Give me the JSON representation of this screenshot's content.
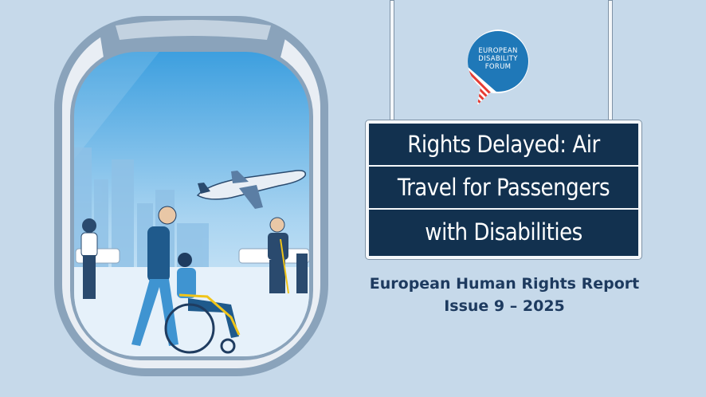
{
  "logo": {
    "line1": "EUROPEAN",
    "line2": "DISABILITY",
    "line3": "FORUM",
    "color": "#1f78b8",
    "stripe_color": "#e63b33"
  },
  "sign": {
    "lines": [
      "Rights Delayed: Air",
      "Travel for Passengers",
      "with Disabilities"
    ],
    "background": "#12314f"
  },
  "subtitle": {
    "line1": "European Human Rights Report",
    "line2": "Issue 9 – 2025"
  },
  "colors": {
    "background": "#c6d9ea",
    "frame": "#8aa3bb",
    "sky": "#4aa6e0"
  }
}
